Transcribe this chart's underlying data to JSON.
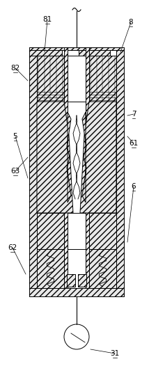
{
  "bg_color": "#ffffff",
  "line_color": "#000000",
  "figsize": [
    2.14,
    5.26
  ],
  "dpi": 100,
  "hatch_dense": "////",
  "hatch_std": "///",
  "labels": [
    "81",
    "82",
    "8",
    "5",
    "7",
    "61",
    "63",
    "6",
    "62",
    "31"
  ]
}
